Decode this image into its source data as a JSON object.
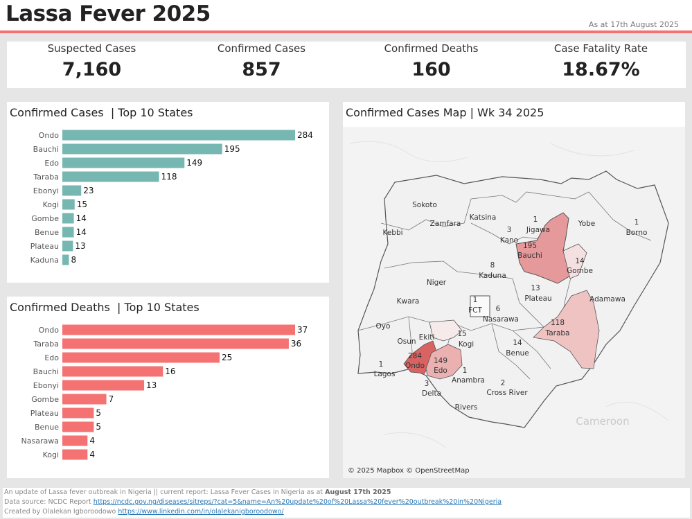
{
  "header": {
    "title": "Lassa Fever 2025",
    "as_at": "As at 17th August 2025",
    "accent_color": "#f47272"
  },
  "kpis": [
    {
      "label": "Suspected Cases",
      "value": "7,160"
    },
    {
      "label": "Confirmed Cases",
      "value": "857"
    },
    {
      "label": "Confirmed Deaths",
      "value": "160"
    },
    {
      "label": "Case Fatality Rate",
      "value": "18.67%"
    }
  ],
  "cases_panel": {
    "title": "Confirmed Cases  | Top 10 States"
  },
  "deaths_panel": {
    "title": "Confirmed Deaths  | Top 10 States"
  },
  "map_panel": {
    "title": "Confirmed Cases Map | Wk 34 2025",
    "attribution": "© 2025 Mapbox © OpenStreetMap",
    "country_label": "Cameroon"
  },
  "chart_data": [
    {
      "type": "bar",
      "orientation": "horizontal",
      "title": "Confirmed Cases  | Top 10 States",
      "categories": [
        "Ondo",
        "Bauchi",
        "Edo",
        "Taraba",
        "Ebonyi",
        "Kogi",
        "Gombe",
        "Benue",
        "Plateau",
        "Kaduna"
      ],
      "values": [
        284,
        195,
        149,
        118,
        23,
        15,
        14,
        14,
        13,
        8
      ],
      "color": "#76b7b2",
      "xlim": [
        0,
        284
      ]
    },
    {
      "type": "bar",
      "orientation": "horizontal",
      "title": "Confirmed Deaths  | Top 10 States",
      "categories": [
        "Ondo",
        "Taraba",
        "Edo",
        "Bauchi",
        "Ebonyi",
        "Gombe",
        "Plateau",
        "Benue",
        "Nasarawa",
        "Kogi"
      ],
      "values": [
        37,
        36,
        25,
        16,
        13,
        7,
        5,
        5,
        4,
        4
      ],
      "color": "#f47272",
      "xlim": [
        0,
        37
      ]
    }
  ],
  "map_labels": [
    {
      "name": "Sokoto",
      "value": ""
    },
    {
      "name": "Zamfara",
      "value": ""
    },
    {
      "name": "Katsina",
      "value": ""
    },
    {
      "name": "Kano",
      "value": "3"
    },
    {
      "name": "Jigawa",
      "value": "1"
    },
    {
      "name": "Yobe",
      "value": ""
    },
    {
      "name": "Borno",
      "value": "1"
    },
    {
      "name": "Kebbi",
      "value": ""
    },
    {
      "name": "Bauchi",
      "value": "195"
    },
    {
      "name": "Gombe",
      "value": "14"
    },
    {
      "name": "Kaduna",
      "value": "8"
    },
    {
      "name": "Niger",
      "value": ""
    },
    {
      "name": "Plateau",
      "value": "13"
    },
    {
      "name": "Adamawa",
      "value": ""
    },
    {
      "name": "Kwara",
      "value": ""
    },
    {
      "name": "FCT",
      "value": "1"
    },
    {
      "name": "Nasarawa",
      "value": "6"
    },
    {
      "name": "Taraba",
      "value": "118"
    },
    {
      "name": "Oyo",
      "value": ""
    },
    {
      "name": "Ekiti",
      "value": ""
    },
    {
      "name": "Kogi",
      "value": "15"
    },
    {
      "name": "Osun",
      "value": ""
    },
    {
      "name": "Benue",
      "value": "14"
    },
    {
      "name": "Ondo",
      "value": "284"
    },
    {
      "name": "Edo",
      "value": "149"
    },
    {
      "name": "Lagos",
      "value": "1"
    },
    {
      "name": "Delta",
      "value": "3"
    },
    {
      "name": "Anambra",
      "value": "1"
    },
    {
      "name": "Cross River",
      "value": "2"
    },
    {
      "name": "Rivers",
      "value": ""
    }
  ],
  "footer": {
    "line1_prefix": "An update of Lassa fever outbreak in Nigeria || current report: Lassa Fever Cases in Nigeria as at ",
    "line1_bold": "August 17th 2025",
    "line2_prefix": "Data source: NCDC Report ",
    "line2_link": "https://ncdc.gov.ng/diseases/sitreps/?cat=5&name=An%20update%20of%20Lassa%20fever%20outbreak%20in%20Nigeria",
    "line3_prefix": "Created by Olalekan Igboroodowo ",
    "line3_link": "https://www.linkedin.com/in/olalekanigboroodowo/"
  }
}
